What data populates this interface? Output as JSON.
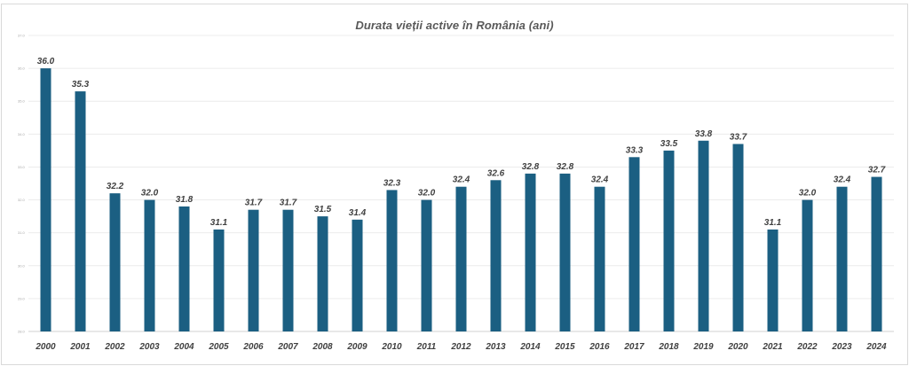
{
  "chart_data": {
    "type": "bar",
    "title": "Durata vieții active în România (ani)",
    "xlabel": "",
    "ylabel": "",
    "categories": [
      "2000",
      "2001",
      "2002",
      "2003",
      "2004",
      "2005",
      "2006",
      "2007",
      "2008",
      "2009",
      "2010",
      "2011",
      "2012",
      "2013",
      "2014",
      "2015",
      "2016",
      "2017",
      "2018",
      "2019",
      "2020",
      "2021",
      "2022",
      "2023",
      "2024"
    ],
    "values": [
      36.0,
      35.3,
      32.2,
      32.0,
      31.8,
      31.1,
      31.7,
      31.7,
      31.5,
      31.4,
      32.3,
      32.0,
      32.4,
      32.6,
      32.8,
      32.8,
      32.4,
      33.3,
      33.5,
      33.8,
      33.7,
      31.1,
      32.0,
      32.4,
      32.7
    ],
    "value_labels": [
      "36.0",
      "35.3",
      "32.2",
      "32.0",
      "31.8",
      "31.1",
      "31.7",
      "31.7",
      "31.5",
      "31.4",
      "32.3",
      "32.0",
      "32.4",
      "32.6",
      "32.8",
      "32.8",
      "32.4",
      "33.3",
      "33.5",
      "33.8",
      "33.7",
      "31.1",
      "32.0",
      "32.4",
      "32.7"
    ],
    "ylim": [
      28.0,
      37.0
    ],
    "y_ticks": [
      "28.0",
      "29.0",
      "30.0",
      "31.0",
      "32.0",
      "33.0",
      "34.0",
      "35.0",
      "36.0",
      "37.0"
    ],
    "grid": true,
    "legend": "none",
    "colors": {
      "bar": "#1b5f82",
      "grid": "#ececec",
      "axis": "#d0d0d0"
    }
  }
}
